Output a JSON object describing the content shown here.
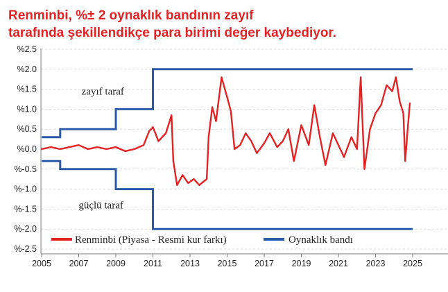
{
  "chart_data": {
    "type": "line",
    "title_lines": [
      "Renminbi, %± 2 oynaklık bandının zayıf",
      "tarafında şekillendikçe para birimi değer kaybediyor."
    ],
    "xlabel": "",
    "ylabel": "",
    "xlim": [
      2005,
      2025
    ],
    "ylim": [
      -2.5,
      2.5
    ],
    "x_ticks": [
      2005,
      2007,
      2009,
      2011,
      2013,
      2015,
      2017,
      2019,
      2021,
      2023,
      2025
    ],
    "x_tick_labels": [
      "2005",
      "2007",
      "2009",
      "2011",
      "2013",
      "2015",
      "2017",
      "2019",
      "2021",
      "2023",
      "2025"
    ],
    "y_ticks": [
      2.5,
      2.0,
      1.5,
      1.0,
      0.5,
      0.0,
      -0.5,
      -1.0,
      -1.5,
      -2.0,
      -2.5
    ],
    "y_tick_labels": [
      "%2.5",
      "%2.0",
      "%1.5",
      "%1.0",
      "%0.5",
      "%0.0",
      "%-0.5",
      "%-1.0",
      "%-1.5",
      "%-2.0",
      "%-2.5"
    ],
    "grid": false,
    "annotations": [
      {
        "text": "zayıf taraf",
        "x": 2008.3,
        "y": 1.45
      },
      {
        "text": "güçlü taraf",
        "x": 2008.2,
        "y": -1.4
      }
    ],
    "legend": {
      "placement": "bottom",
      "entries": [
        "Renminbi (Piyasa - Resmi kur farkı)",
        "Oynaklık bandı"
      ]
    },
    "series": [
      {
        "name": "Renminbi (Piyasa - Resmi kur farkı)",
        "color": "#e32224",
        "points": [
          [
            2005.0,
            0.0
          ],
          [
            2005.5,
            0.05
          ],
          [
            2006.0,
            0.0
          ],
          [
            2006.5,
            0.05
          ],
          [
            2007.0,
            0.1
          ],
          [
            2007.5,
            0.0
          ],
          [
            2008.0,
            0.05
          ],
          [
            2008.5,
            0.0
          ],
          [
            2009.0,
            0.05
          ],
          [
            2009.5,
            -0.05
          ],
          [
            2010.0,
            0.0
          ],
          [
            2010.5,
            0.1
          ],
          [
            2010.8,
            0.45
          ],
          [
            2011.0,
            0.55
          ],
          [
            2011.3,
            0.2
          ],
          [
            2011.7,
            0.4
          ],
          [
            2012.0,
            0.85
          ],
          [
            2012.1,
            -0.3
          ],
          [
            2012.3,
            -0.9
          ],
          [
            2012.6,
            -0.65
          ],
          [
            2012.9,
            -0.85
          ],
          [
            2013.2,
            -0.75
          ],
          [
            2013.5,
            -0.9
          ],
          [
            2013.9,
            -0.75
          ],
          [
            2014.0,
            0.3
          ],
          [
            2014.2,
            1.05
          ],
          [
            2014.4,
            0.7
          ],
          [
            2014.7,
            1.8
          ],
          [
            2015.0,
            1.3
          ],
          [
            2015.2,
            0.95
          ],
          [
            2015.4,
            0.0
          ],
          [
            2015.7,
            0.1
          ],
          [
            2016.0,
            0.4
          ],
          [
            2016.3,
            0.2
          ],
          [
            2016.6,
            -0.1
          ],
          [
            2017.0,
            0.15
          ],
          [
            2017.3,
            0.4
          ],
          [
            2017.7,
            0.05
          ],
          [
            2018.0,
            0.2
          ],
          [
            2018.3,
            0.5
          ],
          [
            2018.6,
            -0.3
          ],
          [
            2019.0,
            0.6
          ],
          [
            2019.4,
            0.1
          ],
          [
            2019.7,
            1.1
          ],
          [
            2020.0,
            0.3
          ],
          [
            2020.3,
            -0.4
          ],
          [
            2020.7,
            0.4
          ],
          [
            2021.0,
            0.1
          ],
          [
            2021.3,
            -0.2
          ],
          [
            2021.7,
            0.3
          ],
          [
            2022.0,
            0.0
          ],
          [
            2022.2,
            1.8
          ],
          [
            2022.4,
            -0.5
          ],
          [
            2022.7,
            0.5
          ],
          [
            2023.0,
            0.9
          ],
          [
            2023.3,
            1.1
          ],
          [
            2023.6,
            1.6
          ],
          [
            2023.9,
            1.45
          ],
          [
            2024.1,
            1.8
          ],
          [
            2024.3,
            1.2
          ],
          [
            2024.5,
            0.9
          ],
          [
            2024.6,
            -0.3
          ],
          [
            2024.75,
            0.6
          ],
          [
            2024.85,
            1.15
          ]
        ]
      },
      {
        "name": "Oynaklık bandı",
        "color": "#2b5aa8",
        "upper": [
          [
            2005.0,
            0.3
          ],
          [
            2006.0,
            0.3
          ],
          [
            2006.0,
            0.5
          ],
          [
            2009.0,
            0.5
          ],
          [
            2009.0,
            1.0
          ],
          [
            2011.0,
            1.0
          ],
          [
            2011.0,
            2.0
          ],
          [
            2025.0,
            2.0
          ]
        ],
        "lower": [
          [
            2005.0,
            -0.3
          ],
          [
            2006.0,
            -0.3
          ],
          [
            2006.0,
            -0.5
          ],
          [
            2009.0,
            -0.5
          ],
          [
            2009.0,
            -1.0
          ],
          [
            2011.0,
            -1.0
          ],
          [
            2011.0,
            -2.0
          ],
          [
            2025.0,
            -2.0
          ]
        ]
      }
    ]
  }
}
